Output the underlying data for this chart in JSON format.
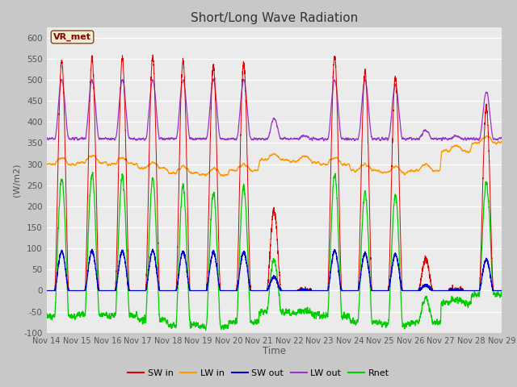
{
  "title": "Short/Long Wave Radiation",
  "ylabel": "(W/m2)",
  "xlabel": "Time",
  "ylim": [
    -100,
    625
  ],
  "yticks": [
    -100,
    -50,
    0,
    50,
    100,
    150,
    200,
    250,
    300,
    350,
    400,
    450,
    500,
    550,
    600
  ],
  "xtick_labels": [
    "Nov 14",
    "Nov 15",
    "Nov 16",
    "Nov 17",
    "Nov 18",
    "Nov 19",
    "Nov 20",
    "Nov 21",
    "Nov 22",
    "Nov 23",
    "Nov 24",
    "Nov 25",
    "Nov 26",
    "Nov 27",
    "Nov 28",
    "Nov 29"
  ],
  "annotation_label": "VR_met",
  "line_colors": {
    "SW in": "#dd0000",
    "LW in": "#ff9900",
    "SW out": "#0000cc",
    "LW out": "#9933cc",
    "Rnet": "#00cc00"
  },
  "n_days": 15,
  "points_per_day": 288,
  "day_peaks_sw": [
    545,
    550,
    552,
    553,
    545,
    535,
    540,
    190,
    0,
    555,
    520,
    505,
    75,
    0,
    435
  ],
  "day_cloud": [
    1.0,
    1.0,
    1.0,
    1.0,
    1.0,
    1.0,
    1.0,
    0.35,
    0.05,
    1.0,
    1.0,
    0.92,
    0.15,
    0.05,
    0.8
  ],
  "lw_in_base": [
    300,
    305,
    300,
    290,
    280,
    275,
    285,
    310,
    305,
    300,
    285,
    280,
    285,
    330,
    350
  ],
  "figsize": [
    6.4,
    4.8
  ],
  "dpi": 100
}
